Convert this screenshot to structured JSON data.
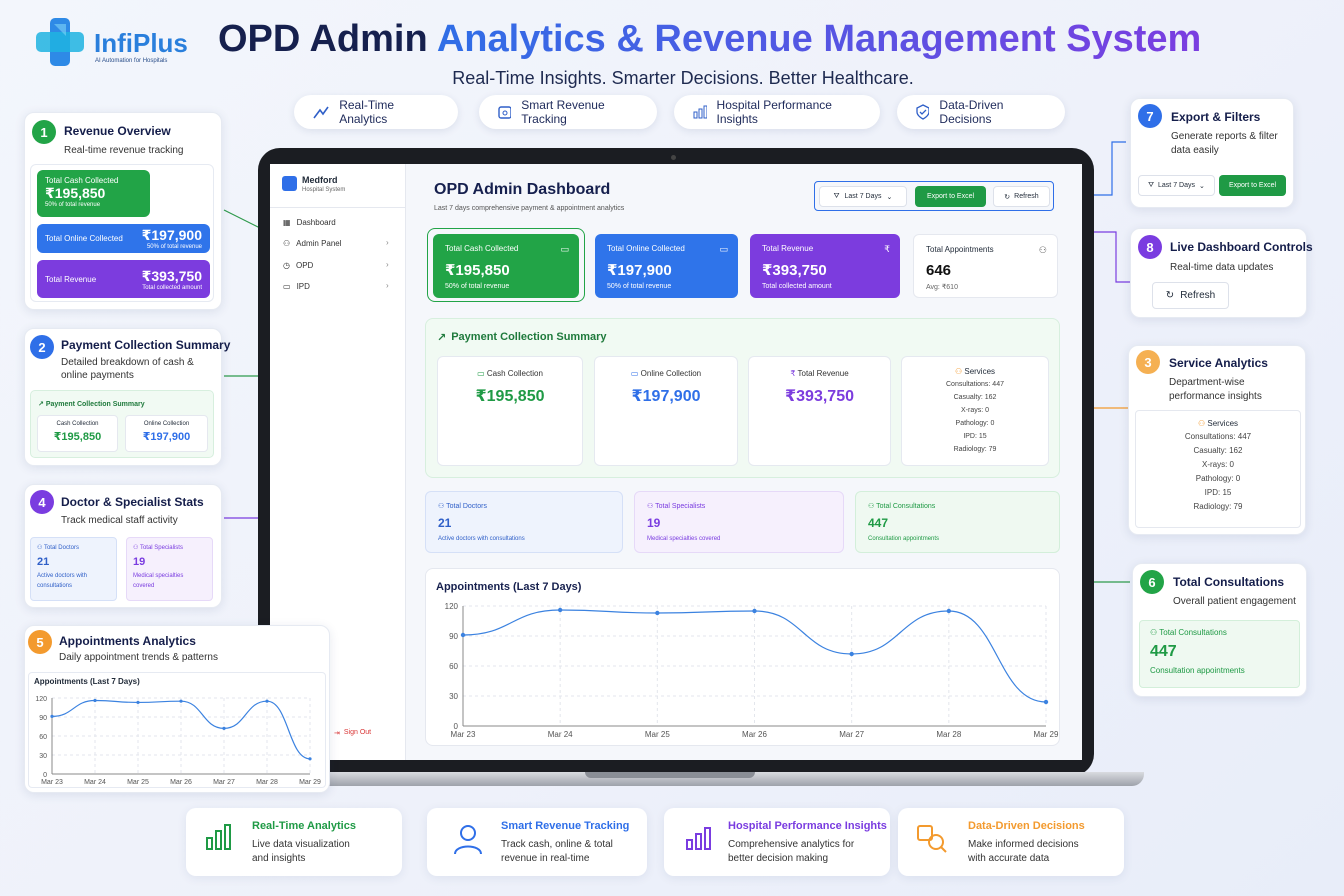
{
  "brand": {
    "name": "InfiPlus",
    "tagline": "AI Automation for Hospitals"
  },
  "header": {
    "title_part1": "OPD Admin ",
    "title_part2": "Analytics & Revenue Management System",
    "subtitle": "Real-Time Insights. Smarter Decisions. Better Healthcare."
  },
  "top_pills": [
    "Real-Time Analytics",
    "Smart Revenue Tracking",
    "Hospital Performance Insights",
    "Data-Driven Decisions"
  ],
  "callouts": {
    "c1": {
      "num": "1",
      "title": "Revenue Overview",
      "sub": "Real-time revenue tracking",
      "color": "#22a447",
      "tiles": [
        {
          "label": "Total Cash Collected",
          "value": "₹195,850",
          "sub": "50% of total revenue"
        },
        {
          "label": "Total Online Collected",
          "value": "₹197,900",
          "sub": "50% of total revenue"
        },
        {
          "label": "Total Revenue",
          "value": "₹393,750",
          "sub": "Total collected amount"
        }
      ]
    },
    "c2": {
      "num": "2",
      "title": "Payment Collection Summary",
      "sub": "Detailed breakdown of cash & online payments",
      "color": "#2f6fe8",
      "box_title": "Payment Collection Summary",
      "cash_label": "Cash Collection",
      "cash": "₹195,850",
      "online_label": "Online Collection",
      "online": "₹197,900"
    },
    "c3": {
      "num": "3",
      "title": "Service Analytics",
      "sub": "Department-wise performance insights",
      "color": "#f5b052",
      "services_title": "Services",
      "services": [
        "Consultations: 447",
        "Casualty: 162",
        "X-rays: 0",
        "Pathology: 0",
        "IPD: 15",
        "Radiology: 79"
      ]
    },
    "c4": {
      "num": "4",
      "title": "Doctor & Specialist Stats",
      "sub": "Track medical staff activity",
      "color": "#7a3ce0",
      "doctors_label": "Total Doctors",
      "doctors": "21",
      "doctors_sub": "Active doctors with consultations",
      "spec_label": "Total Specialists",
      "spec": "19",
      "spec_sub": "Medical specialties covered"
    },
    "c5": {
      "num": "5",
      "title": "Appointments Analytics",
      "sub": "Daily appointment trends & patterns",
      "color": "#f39a2e",
      "chart_title": "Appointments (Last 7 Days)"
    },
    "c6": {
      "num": "6",
      "title": "Total Consultations",
      "sub": "Overall patient engagement",
      "color": "#22a447",
      "label": "Total Consultations",
      "value": "447",
      "note": "Consultation appointments"
    },
    "c7": {
      "num": "7",
      "title": "Export & Filters",
      "sub": "Generate reports & filter data easily",
      "color": "#2f6fe8",
      "filter": "Last 7 Days",
      "export": "Export to Excel"
    },
    "c8": {
      "num": "8",
      "title": "Live Dashboard Controls",
      "sub": "Real-time data updates",
      "color": "#7a3ce0",
      "refresh": "Refresh"
    }
  },
  "dashboard": {
    "hospital_name": "Medford",
    "hospital_sub": "Hospital System",
    "nav": [
      "Dashboard",
      "Admin Panel",
      "OPD",
      "IPD"
    ],
    "sign_out": "Sign Out",
    "title": "OPD Admin Dashboard",
    "subtitle": "Last 7 days comprehensive payment & appointment analytics",
    "filter": "Last 7 Days",
    "export": "Export to Excel",
    "refresh": "Refresh",
    "kpis": [
      {
        "label": "Total Cash Collected",
        "value": "₹195,850",
        "sub": "50% of total revenue",
        "color": "#22a447"
      },
      {
        "label": "Total Online Collected",
        "value": "₹197,900",
        "sub": "50% of total revenue",
        "color": "#2f74ea"
      },
      {
        "label": "Total Revenue",
        "value": "₹393,750",
        "sub": "Total collected amount",
        "color": "#7c3cde"
      },
      {
        "label": "Total Appointments",
        "value": "646",
        "sub": "Avg: ₹610",
        "color": "#ffffff"
      }
    ],
    "pcs_title": "Payment Collection Summary",
    "pcs": [
      {
        "label": "Cash Collection",
        "value": "₹195,850",
        "color": "#22a447"
      },
      {
        "label": "Online Collection",
        "value": "₹197,900",
        "color": "#2f6fe8"
      },
      {
        "label": "Total Revenue",
        "value": "₹393,750",
        "color": "#7c3cde"
      }
    ],
    "services_title": "Services",
    "services": [
      "Consultations: 447",
      "Casualty: 162",
      "X-rays: 0",
      "Pathology: 0",
      "IPD: 15",
      "Radiology: 79"
    ],
    "stats": [
      {
        "label": "Total Doctors",
        "value": "21",
        "sub": "Active doctors with consultations",
        "color": "#2f5fc8"
      },
      {
        "label": "Total Specialists",
        "value": "19",
        "sub": "Medical specialties covered",
        "color": "#7a3ce0"
      },
      {
        "label": "Total Consultations",
        "value": "447",
        "sub": "Consultation appointments",
        "color": "#1f9a45"
      }
    ],
    "chart_title": "Appointments (Last 7 Days)"
  },
  "chart_data": {
    "type": "line",
    "title": "Appointments (Last 7 Days)",
    "x": [
      "Mar 23",
      "Mar 24",
      "Mar 25",
      "Mar 26",
      "Mar 27",
      "Mar 28",
      "Mar 29"
    ],
    "series": [
      {
        "values": [
          91,
          116,
          113,
          115,
          72,
          115,
          24
        ]
      }
    ],
    "ylim": [
      0,
      120
    ],
    "yticks": [
      0,
      30,
      60,
      90,
      120
    ],
    "color": "#3b82e0",
    "grid": true
  },
  "small_chart": {
    "yticks": [
      0,
      30,
      60,
      90,
      120
    ]
  },
  "bottom_features": [
    {
      "title": "Real-Time Analytics",
      "desc": "Live data visualization and insights",
      "color": "#1f9a45"
    },
    {
      "title": "Smart Revenue Tracking",
      "desc": "Track cash, online & total revenue in real-time",
      "color": "#2f6fe8"
    },
    {
      "title": "Hospital Performance Insights",
      "desc": "Comprehensive analytics for better decision making",
      "color": "#7a3ce0"
    },
    {
      "title": "Data-Driven Decisions",
      "desc": "Make informed decisions with accurate data",
      "color": "#f39a2e"
    }
  ]
}
